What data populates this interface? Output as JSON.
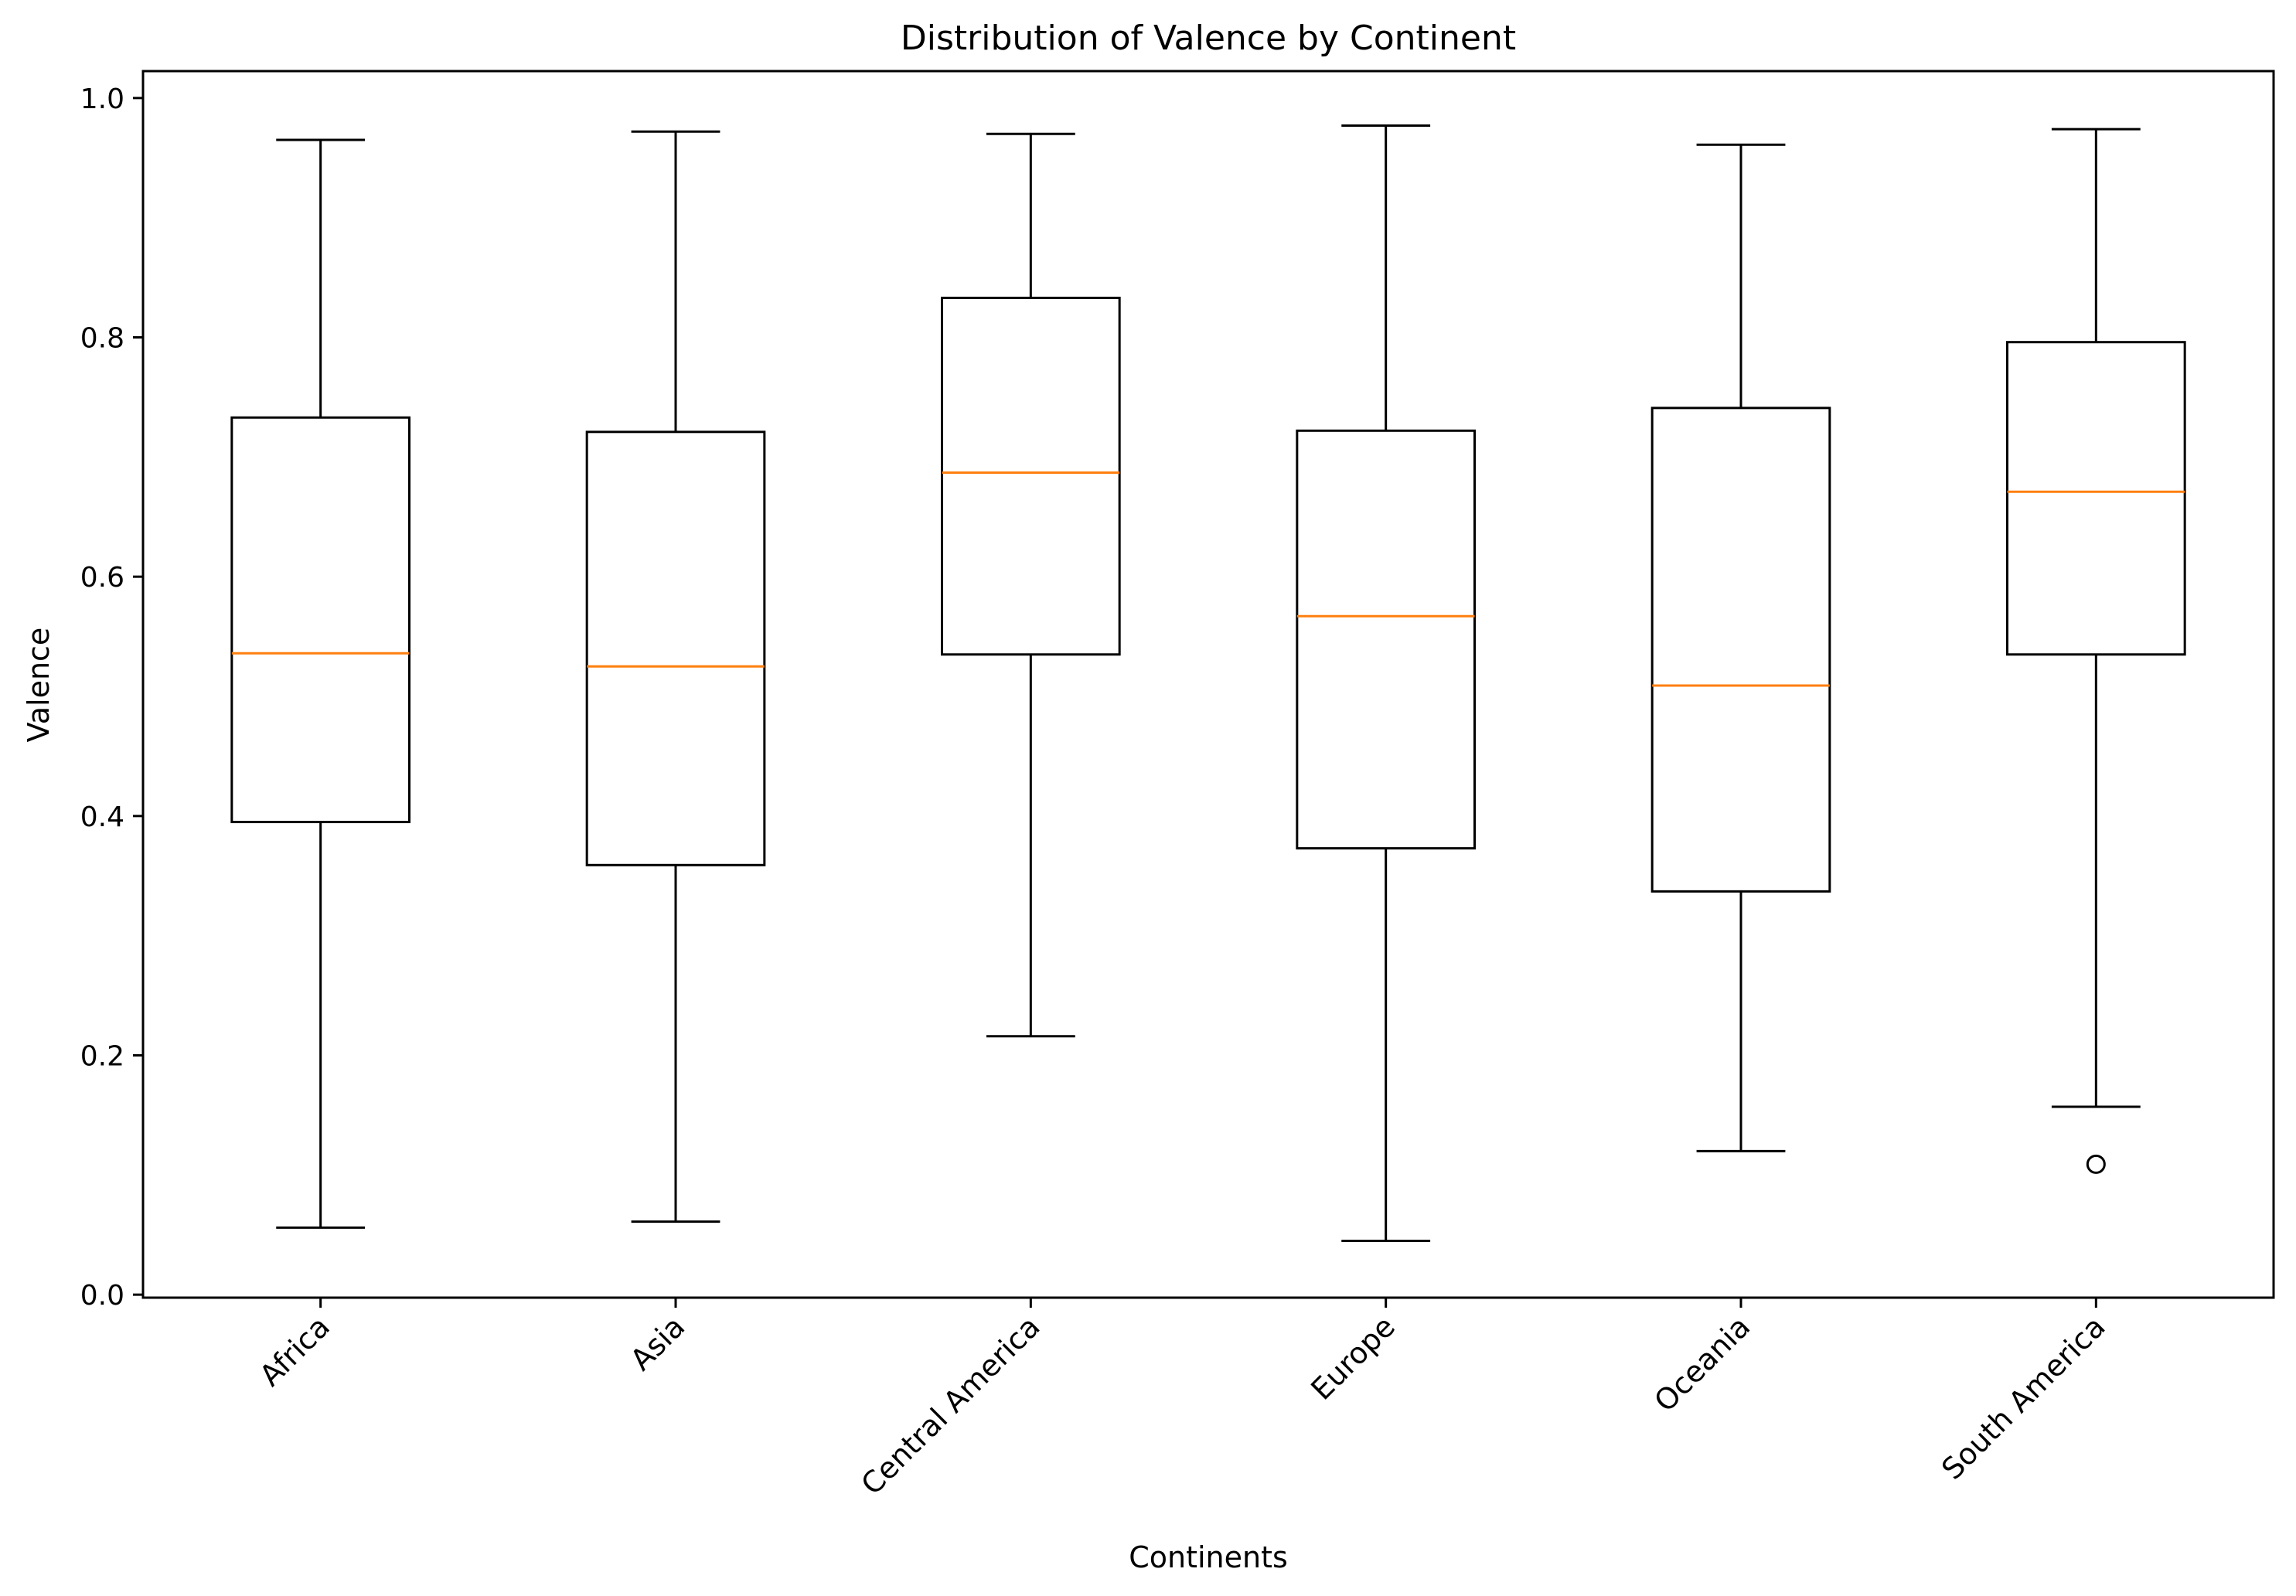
{
  "chart_data": {
    "type": "boxplot",
    "title": "Distribution of Valence by Continent",
    "xlabel": "Continents",
    "ylabel": "Valence",
    "categories": [
      "Africa",
      "Asia",
      "Central America",
      "Europe",
      "Oceania",
      "South America"
    ],
    "ylim": [
      -0.0025,
      1.0225
    ],
    "yticks": [
      0.0,
      0.2,
      0.4,
      0.6,
      0.8,
      1.0
    ],
    "ytick_labels": [
      "0.0",
      "0.2",
      "0.4",
      "0.6",
      "0.8",
      "1.0"
    ],
    "xtick_rotation_deg": 45,
    "grid": false,
    "legend": "none",
    "colors": {
      "box": "#000000",
      "median": "#ff7f0e",
      "outlier": "#000000"
    },
    "boxes": [
      {
        "label": "Africa",
        "whisker_low": 0.056,
        "q1": 0.395,
        "median": 0.536,
        "q3": 0.733,
        "whisker_high": 0.965,
        "outliers": []
      },
      {
        "label": "Asia",
        "whisker_low": 0.061,
        "q1": 0.359,
        "median": 0.525,
        "q3": 0.721,
        "whisker_high": 0.972,
        "outliers": []
      },
      {
        "label": "Central America",
        "whisker_low": 0.216,
        "q1": 0.535,
        "median": 0.687,
        "q3": 0.833,
        "whisker_high": 0.97,
        "outliers": []
      },
      {
        "label": "Europe",
        "whisker_low": 0.045,
        "q1": 0.373,
        "median": 0.567,
        "q3": 0.722,
        "whisker_high": 0.977,
        "outliers": []
      },
      {
        "label": "Oceania",
        "whisker_low": 0.12,
        "q1": 0.337,
        "median": 0.509,
        "q3": 0.741,
        "whisker_high": 0.961,
        "outliers": []
      },
      {
        "label": "South America",
        "whisker_low": 0.157,
        "q1": 0.535,
        "median": 0.671,
        "q3": 0.796,
        "whisker_high": 0.974,
        "outliers": [
          0.109
        ]
      }
    ]
  }
}
